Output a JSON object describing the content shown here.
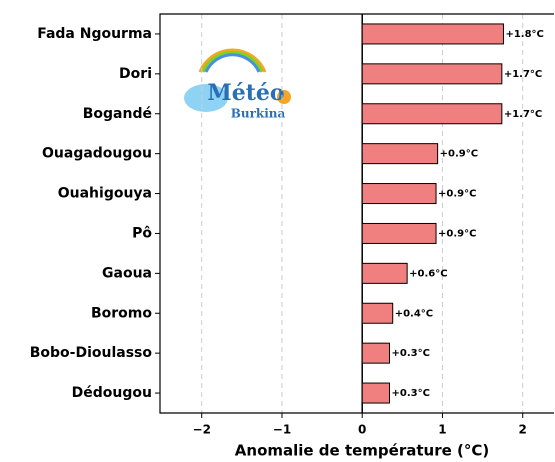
{
  "chart_data": {
    "type": "barh",
    "xlabel": "Anomalie de température (°C)",
    "categories": [
      "Fada Ngourma",
      "Dori",
      "Bogandé",
      "Ouagadougou",
      "Ouahigouya",
      "Pô",
      "Gaoua",
      "Boromo",
      "Bobo-Dioulasso",
      "Dédougou"
    ],
    "values": [
      1.76,
      1.74,
      1.74,
      0.94,
      0.92,
      0.92,
      0.56,
      0.38,
      0.34,
      0.34
    ],
    "value_labels": [
      "+1.8°C",
      "+1.7°C",
      "+1.7°C",
      "+0.9°C",
      "+0.9°C",
      "+0.9°C",
      "+0.6°C",
      "+0.4°C",
      "+0.3°C",
      "+0.3°C"
    ],
    "color": "#f08080",
    "xlim": [
      -2.52,
      2.39
    ],
    "xticks": [
      {
        "value": -2,
        "label": "−2"
      },
      {
        "value": -1,
        "label": "−1"
      },
      0,
      1,
      2
    ],
    "grid": true,
    "logo": {
      "title": "Météo",
      "subtitle": "Burkina"
    }
  }
}
